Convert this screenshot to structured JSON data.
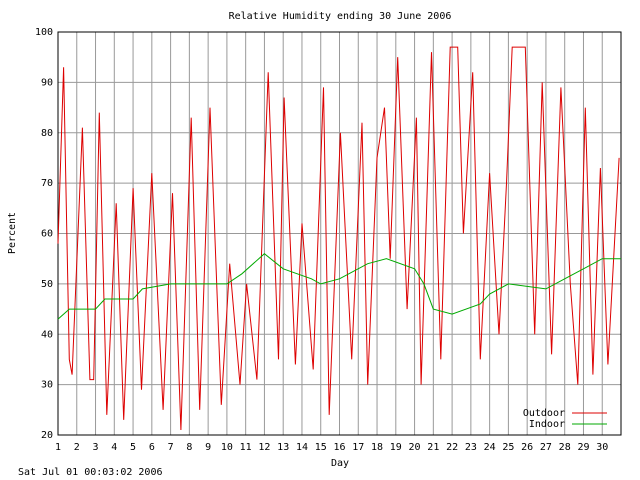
{
  "chart_data": {
    "type": "line",
    "title": "Relative Humidity ending 30 June 2006",
    "x_label": "Day",
    "y_label": "Percent",
    "footer": "Sat Jul 01 00:03:02 2006",
    "xlim": [
      1,
      31
    ],
    "ylim": [
      20,
      100
    ],
    "xticks": [
      1,
      2,
      3,
      4,
      5,
      6,
      7,
      8,
      9,
      10,
      11,
      12,
      13,
      14,
      15,
      16,
      17,
      18,
      19,
      20,
      21,
      22,
      23,
      24,
      25,
      26,
      27,
      28,
      29,
      30
    ],
    "yticks": [
      20,
      30,
      40,
      50,
      60,
      70,
      80,
      90,
      100
    ],
    "grid": true,
    "legend": "bottom-right",
    "series": [
      {
        "name": "Outdoor",
        "color": "#dd0000",
        "x": [
          1,
          1.3,
          1.6,
          1.75,
          2.3,
          2.7,
          2.9,
          3.2,
          3.6,
          4.1,
          4.5,
          5.0,
          5.45,
          6.0,
          6.6,
          7.1,
          7.55,
          8.1,
          8.55,
          9.1,
          9.7,
          10.15,
          10.7,
          11.05,
          11.6,
          12.2,
          12.75,
          13.05,
          13.65,
          14.0,
          14.6,
          15.15,
          15.45,
          16.05,
          16.65,
          17.2,
          17.5,
          18.0,
          18.4,
          18.7,
          19.1,
          19.6,
          20.1,
          20.35,
          20.9,
          21.4,
          21.9,
          22.3,
          22.6,
          23.1,
          23.5,
          24.0,
          24.5,
          24.9,
          25.2,
          25.9,
          26.4,
          26.8,
          27.3,
          27.8,
          28.3,
          28.7,
          29.1,
          29.5,
          29.9,
          30.3,
          30.9
        ],
        "values": [
          58,
          93,
          35,
          32,
          81,
          31,
          31,
          84,
          24,
          66,
          23,
          69,
          29,
          72,
          25,
          68,
          21,
          83,
          25,
          85,
          26,
          54,
          30,
          50,
          31,
          92,
          35,
          87,
          34,
          62,
          33,
          89,
          24,
          80,
          35,
          82,
          30,
          75,
          85,
          55,
          95,
          45,
          83,
          30,
          96,
          35,
          97,
          97,
          60,
          92,
          35,
          72,
          40,
          70,
          97,
          97,
          40,
          90,
          36,
          89,
          50,
          30,
          85,
          32,
          73,
          34,
          75
        ]
      },
      {
        "name": "Indoor",
        "color": "#00aa00",
        "x": [
          1,
          1.6,
          3,
          3.5,
          5,
          5.5,
          7,
          10,
          10.8,
          12,
          13,
          14.5,
          15,
          16,
          17.5,
          18.5,
          20,
          20.5,
          21,
          22,
          23.5,
          24,
          25,
          27,
          28,
          29,
          30,
          31
        ],
        "values": [
          43,
          45,
          45,
          47,
          47,
          49,
          50,
          50,
          52,
          56,
          53,
          51,
          50,
          51,
          54,
          55,
          53,
          50,
          45,
          44,
          46,
          48,
          50,
          49,
          51,
          53,
          55,
          55
        ]
      }
    ]
  }
}
